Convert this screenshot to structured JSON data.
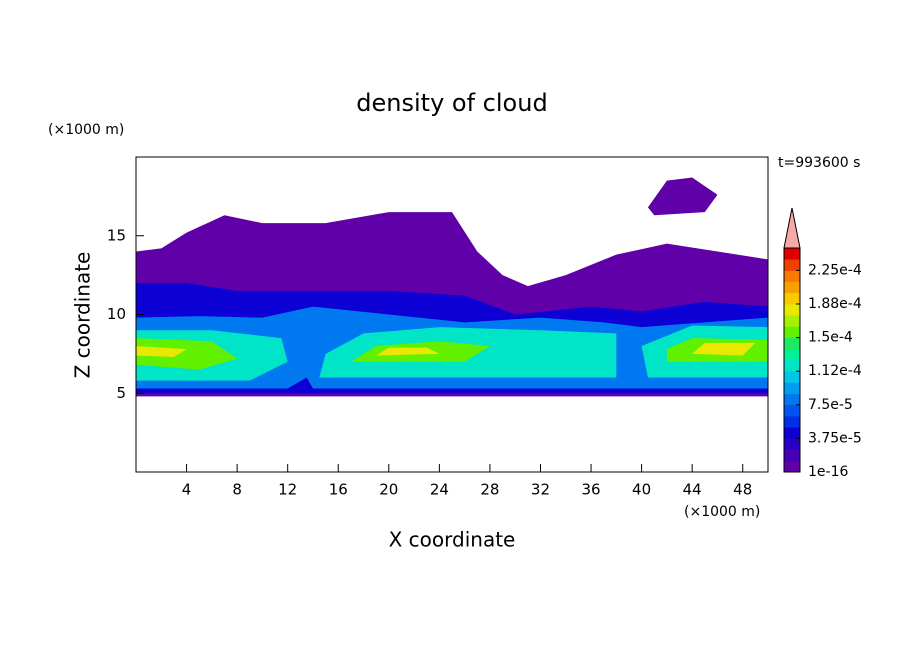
{
  "chart_data": {
    "type": "contour",
    "title": "density of cloud",
    "x_label": "X coordinate",
    "y_label": "Z coordinate",
    "x_unit": "(×1000 m)",
    "y_unit": "(×1000 m)",
    "time_label": "t=993600 s",
    "xlim": [
      0,
      50
    ],
    "xticks": [
      4,
      8,
      12,
      16,
      20,
      24,
      28,
      32,
      36,
      40,
      44,
      48
    ],
    "ylim": [
      0,
      20
    ],
    "yticks": [
      5,
      10,
      15
    ],
    "colorbar": {
      "lim": [
        1e-16,
        0.00025
      ],
      "extend_color": "#f8a8a8",
      "colors": [
        "#6000a8",
        "#4400b4",
        "#2800c4",
        "#0c00d4",
        "#0030e4",
        "#0054f0",
        "#0078f0",
        "#009cf0",
        "#00c4e8",
        "#00e4c8",
        "#00f098",
        "#20e860",
        "#60f000",
        "#a8f000",
        "#e8e800",
        "#f8c800",
        "#f8a000",
        "#f87800",
        "#f04000",
        "#e00000"
      ],
      "ticks": [
        1e-16,
        {
          "value": 3.75e-05,
          "label": "3.75e-5"
        },
        {
          "value": 7.5e-05,
          "label": "7.5e-5"
        },
        {
          "value": 0.0001125,
          "label": "1.12e-4"
        },
        {
          "value": 0.00015,
          "label": "1.5e-4"
        },
        {
          "value": 0.0001875,
          "label": "1.88e-4"
        },
        {
          "value": 0.000225,
          "label": "2.25e-4"
        }
      ]
    },
    "regions": [
      {
        "level": 1e-16,
        "points": [
          [
            0,
            4.8
          ],
          [
            50,
            4.8
          ],
          [
            50,
            13.5
          ],
          [
            46,
            14
          ],
          [
            42,
            14.5
          ],
          [
            38,
            13.8
          ],
          [
            34,
            12.5
          ],
          [
            31,
            11.8
          ],
          [
            29,
            12.5
          ],
          [
            27,
            14
          ],
          [
            25,
            16.5
          ],
          [
            20,
            16.5
          ],
          [
            15,
            15.8
          ],
          [
            10,
            15.8
          ],
          [
            7,
            16.3
          ],
          [
            4,
            15.2
          ],
          [
            2,
            14.2
          ],
          [
            0,
            14
          ]
        ]
      },
      {
        "level": 1e-16,
        "points": [
          [
            40.5,
            16.8
          ],
          [
            42,
            18.5
          ],
          [
            44,
            18.7
          ],
          [
            46,
            17.6
          ],
          [
            45,
            16.5
          ],
          [
            41,
            16.3
          ]
        ]
      },
      {
        "level": 3.75e-05,
        "points": [
          [
            0,
            5
          ],
          [
            50,
            5
          ],
          [
            50,
            10.5
          ],
          [
            45,
            10.8
          ],
          [
            40,
            10.2
          ],
          [
            36,
            10.5
          ],
          [
            30,
            10
          ],
          [
            26,
            11.2
          ],
          [
            20,
            11.5
          ],
          [
            14,
            11.5
          ],
          [
            8,
            11.5
          ],
          [
            4,
            12
          ],
          [
            0,
            12
          ]
        ]
      },
      {
        "level": 7.5e-05,
        "points": [
          [
            0,
            5.3
          ],
          [
            12,
            5.3
          ],
          [
            13.5,
            6
          ],
          [
            14,
            5.3
          ],
          [
            50,
            5.3
          ],
          [
            50,
            9.8
          ],
          [
            45,
            9.5
          ],
          [
            40,
            9.2
          ],
          [
            37,
            9.5
          ],
          [
            32,
            9.8
          ],
          [
            26,
            9.5
          ],
          [
            20,
            10
          ],
          [
            14,
            10.5
          ],
          [
            10,
            9.8
          ],
          [
            5,
            9.9
          ],
          [
            0,
            9.8
          ]
        ]
      },
      {
        "level": 0.0001125,
        "points": [
          [
            0,
            5.8
          ],
          [
            9,
            5.8
          ],
          [
            12,
            7
          ],
          [
            11.5,
            8.5
          ],
          [
            6,
            9
          ],
          [
            0,
            9
          ]
        ]
      },
      {
        "level": 0.0001125,
        "points": [
          [
            14.5,
            6
          ],
          [
            38,
            6
          ],
          [
            38,
            8.8
          ],
          [
            32,
            9
          ],
          [
            24,
            9.2
          ],
          [
            18,
            8.8
          ],
          [
            15,
            7.5
          ]
        ]
      },
      {
        "level": 0.0001125,
        "points": [
          [
            40.5,
            6
          ],
          [
            50,
            6
          ],
          [
            50,
            9.2
          ],
          [
            44,
            9.3
          ],
          [
            40,
            8
          ]
        ]
      },
      {
        "level": 0.00015,
        "points": [
          [
            0,
            6.8
          ],
          [
            5,
            6.5
          ],
          [
            8,
            7.2
          ],
          [
            6,
            8.3
          ],
          [
            0,
            8.5
          ]
        ]
      },
      {
        "level": 0.00015,
        "points": [
          [
            17,
            7
          ],
          [
            26,
            7
          ],
          [
            28,
            8
          ],
          [
            24,
            8.3
          ],
          [
            19,
            8
          ]
        ]
      },
      {
        "level": 0.00015,
        "points": [
          [
            42,
            7
          ],
          [
            50,
            7
          ],
          [
            50,
            8.4
          ],
          [
            44,
            8.5
          ],
          [
            42,
            7.8
          ]
        ]
      },
      {
        "level": 0.000175,
        "points": [
          [
            0,
            7.4
          ],
          [
            3,
            7.3
          ],
          [
            4,
            7.8
          ],
          [
            0,
            8
          ]
        ]
      },
      {
        "level": 0.000175,
        "points": [
          [
            19,
            7.4
          ],
          [
            24,
            7.5
          ],
          [
            23,
            7.9
          ],
          [
            20,
            7.9
          ]
        ]
      },
      {
        "level": 0.000175,
        "points": [
          [
            44,
            7.5
          ],
          [
            48,
            7.4
          ],
          [
            49,
            8.2
          ],
          [
            45,
            8.2
          ]
        ]
      }
    ]
  }
}
